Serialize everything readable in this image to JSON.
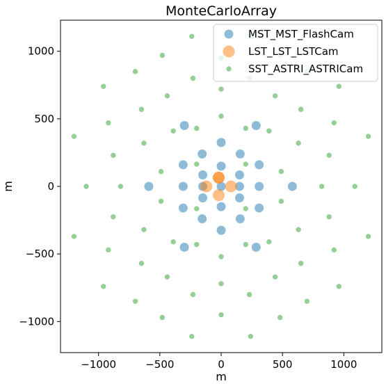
{
  "chart_data": {
    "type": "scatter",
    "title": "MonteCarloArray",
    "xlabel": "m",
    "ylabel": "m",
    "xlim": [
      -1310,
      1310
    ],
    "ylim": [
      -1230,
      1230
    ],
    "xticks": [
      -1000,
      -500,
      0,
      500,
      1000
    ],
    "yticks": [
      -1000,
      -500,
      0,
      500,
      1000
    ],
    "xtick_labels": [
      "−1000",
      "−500",
      "0",
      "500",
      "1000"
    ],
    "ytick_labels": [
      "−1000",
      "−500",
      "0",
      "500",
      "1000"
    ],
    "grid": false,
    "legend_position": "top-right",
    "series": [
      {
        "name": "MST_MST_FlashCam",
        "color": "#1f77b4",
        "marker_size": 6.5,
        "points": [
          [
            0,
            325
          ],
          [
            -155,
            240
          ],
          [
            155,
            240
          ],
          [
            -310,
            160
          ],
          [
            310,
            160
          ],
          [
            -300,
            450
          ],
          [
            285,
            450
          ],
          [
            0,
            150
          ],
          [
            -150,
            85
          ],
          [
            150,
            85
          ],
          [
            -590,
            0
          ],
          [
            -310,
            0
          ],
          [
            -150,
            0
          ],
          [
            0,
            0
          ],
          [
            150,
            0
          ],
          [
            310,
            0
          ],
          [
            580,
            0
          ],
          [
            -150,
            -85
          ],
          [
            150,
            -85
          ],
          [
            0,
            -150
          ],
          [
            -310,
            -160
          ],
          [
            310,
            -160
          ],
          [
            -155,
            -240
          ],
          [
            155,
            -240
          ],
          [
            0,
            -325
          ],
          [
            -300,
            -450
          ],
          [
            285,
            -450
          ]
        ]
      },
      {
        "name": "LST_LST_LSTCam",
        "color": "#ff7f0e",
        "marker_size": 8.5,
        "points": [
          [
            -20,
            65
          ],
          [
            -120,
            0
          ],
          [
            80,
            0
          ],
          [
            -20,
            65
          ],
          [
            -20,
            -65
          ]
        ]
      },
      {
        "name": "SST_ASTRI_ASTRICam",
        "color": "#2ca02c",
        "marker_size": 3.7,
        "points": [
          [
            -240,
            1110
          ],
          [
            240,
            1110
          ],
          [
            0,
            950
          ],
          [
            -480,
            970
          ],
          [
            480,
            970
          ],
          [
            -700,
            850
          ],
          [
            700,
            850
          ],
          [
            -960,
            740
          ],
          [
            960,
            740
          ],
          [
            -1200,
            370
          ],
          [
            1200,
            370
          ],
          [
            -230,
            800
          ],
          [
            230,
            800
          ],
          [
            -440,
            670
          ],
          [
            440,
            670
          ],
          [
            0,
            720
          ],
          [
            -650,
            570
          ],
          [
            650,
            570
          ],
          [
            -920,
            470
          ],
          [
            920,
            470
          ],
          [
            -630,
            320
          ],
          [
            630,
            320
          ],
          [
            -880,
            230
          ],
          [
            880,
            230
          ],
          [
            0,
            520
          ],
          [
            -200,
            430
          ],
          [
            200,
            430
          ],
          [
            -390,
            410
          ],
          [
            390,
            410
          ],
          [
            -490,
            110
          ],
          [
            490,
            110
          ],
          [
            -1100,
            0
          ],
          [
            -820,
            0
          ],
          [
            820,
            0
          ],
          [
            1090,
            0
          ],
          [
            -200,
            165
          ],
          [
            200,
            165
          ],
          [
            -200,
            -165
          ],
          [
            200,
            -165
          ],
          [
            -490,
            -110
          ],
          [
            490,
            -110
          ],
          [
            -880,
            -225
          ],
          [
            880,
            -225
          ],
          [
            -630,
            -320
          ],
          [
            630,
            -320
          ],
          [
            -200,
            -430
          ],
          [
            200,
            -430
          ],
          [
            -390,
            -410
          ],
          [
            390,
            -410
          ],
          [
            0,
            -520
          ],
          [
            -920,
            -470
          ],
          [
            920,
            -470
          ],
          [
            -650,
            -570
          ],
          [
            650,
            -570
          ],
          [
            -1200,
            -370
          ],
          [
            1200,
            -370
          ],
          [
            -440,
            -670
          ],
          [
            440,
            -670
          ],
          [
            0,
            -720
          ],
          [
            -230,
            -800
          ],
          [
            230,
            -800
          ],
          [
            -960,
            -740
          ],
          [
            960,
            -740
          ],
          [
            -700,
            -850
          ],
          [
            700,
            -850
          ],
          [
            -480,
            -970
          ],
          [
            480,
            -970
          ],
          [
            0,
            -950
          ],
          [
            -240,
            -1110
          ],
          [
            240,
            -1110
          ]
        ]
      }
    ]
  }
}
